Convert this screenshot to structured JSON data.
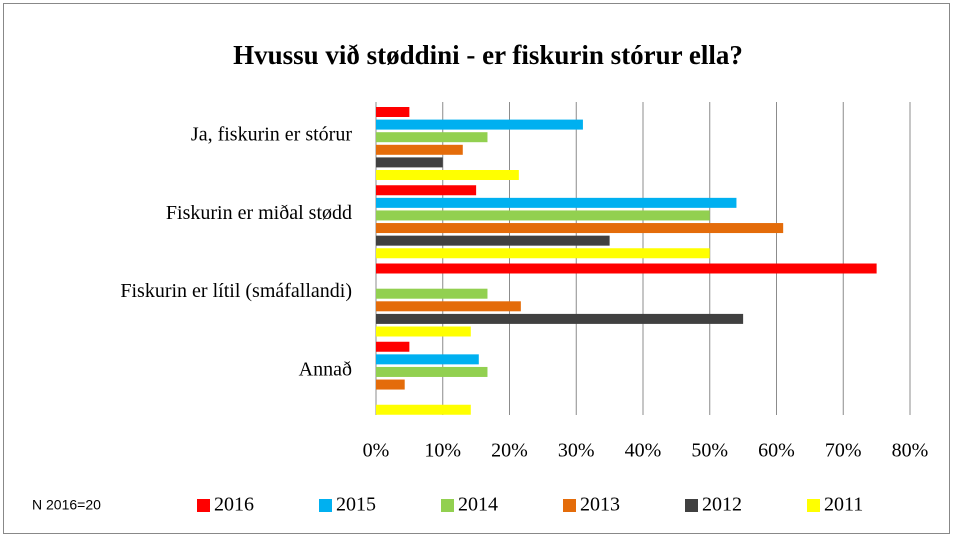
{
  "chart_data": {
    "type": "hbar",
    "title": "Hvussu  við støddini - er fiskurin stórur ella?",
    "categories": [
      "Ja, fiskurin er stórur",
      "Fiskurin er miðal stødd",
      "Fiskurin er lítil (smáfallandi)",
      "Annað"
    ],
    "series": [
      {
        "name": "2016",
        "color": "#ff0000",
        "values": [
          5,
          15,
          75,
          5
        ]
      },
      {
        "name": "2015",
        "color": "#00b0f0",
        "values": [
          31,
          54,
          0,
          15.4
        ]
      },
      {
        "name": "2014",
        "color": "#92d050",
        "values": [
          16.7,
          50,
          16.7,
          16.7
        ]
      },
      {
        "name": "2013",
        "color": "#e46c0a",
        "values": [
          13,
          61,
          21.7,
          4.3
        ]
      },
      {
        "name": "2012",
        "color": "#404040",
        "values": [
          10,
          35,
          55,
          0
        ]
      },
      {
        "name": "2011",
        "color": "#ffff00",
        "values": [
          21.4,
          50,
          14.2,
          14.2
        ]
      }
    ],
    "xlim": [
      0,
      80
    ],
    "xticks": [
      {
        "value": 0,
        "label": "0%"
      },
      {
        "value": 10,
        "label": "10%"
      },
      {
        "value": 20,
        "label": "20%"
      },
      {
        "value": 30,
        "label": "30%"
      },
      {
        "value": 40,
        "label": "40%"
      },
      {
        "value": 50,
        "label": "50%"
      },
      {
        "value": 60,
        "label": "60%"
      },
      {
        "value": 70,
        "label": "70%"
      },
      {
        "value": 80,
        "label": "80%"
      }
    ],
    "grid": true,
    "legend": "bottom",
    "annotation": "N 2016=20"
  }
}
